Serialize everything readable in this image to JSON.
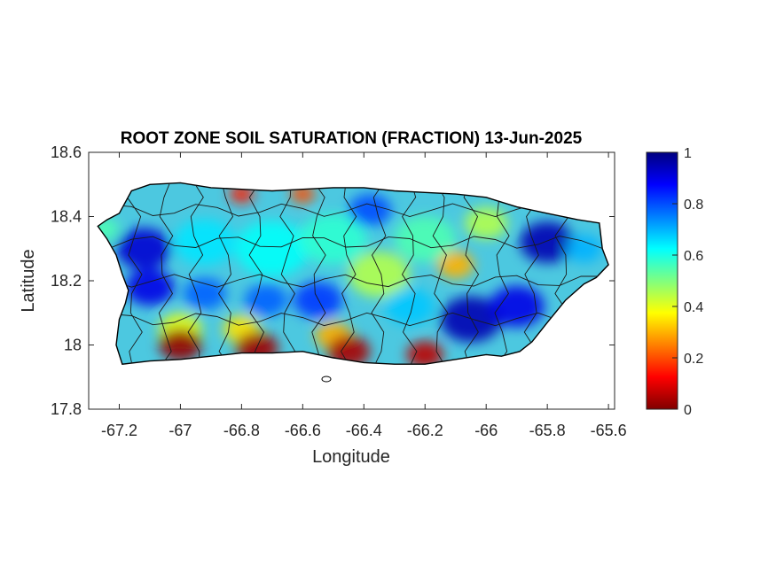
{
  "chart_data": {
    "type": "heatmap",
    "title": "ROOT ZONE SOIL SATURATION (FRACTION) 13-Jun-2025",
    "xlabel": "Longitude",
    "ylabel": "Latitude",
    "xlim": [
      -67.3,
      -65.58
    ],
    "ylim": [
      17.8,
      18.6
    ],
    "xticks": [
      -67.2,
      -67,
      -66.8,
      -66.6,
      -66.4,
      -66.2,
      -66,
      -65.8,
      -65.6
    ],
    "xtick_labels": [
      "-67.2",
      "-67",
      "-66.8",
      "-66.6",
      "-66.4",
      "-66.2",
      "-66",
      "-65.8",
      "-65.6"
    ],
    "yticks": [
      17.8,
      18,
      18.2,
      18.4,
      18.6
    ],
    "ytick_labels": [
      "17.8",
      "18",
      "18.2",
      "18.4",
      "18.6"
    ],
    "colorbar": {
      "colormap": "jet",
      "range": [
        0,
        1
      ],
      "ticks": [
        0,
        0.2,
        0.4,
        0.6,
        0.8,
        1
      ],
      "tick_labels": [
        "0",
        "0.2",
        "0.4",
        "0.6",
        "0.8",
        "1"
      ]
    },
    "outline": [
      [
        -67.27,
        18.37
      ],
      [
        -67.24,
        18.39
      ],
      [
        -67.2,
        18.41
      ],
      [
        -67.16,
        18.48
      ],
      [
        -67.1,
        18.5
      ],
      [
        -67.0,
        18.505
      ],
      [
        -66.9,
        18.49
      ],
      [
        -66.8,
        18.485
      ],
      [
        -66.7,
        18.48
      ],
      [
        -66.6,
        18.485
      ],
      [
        -66.5,
        18.49
      ],
      [
        -66.4,
        18.49
      ],
      [
        -66.3,
        18.48
      ],
      [
        -66.2,
        18.475
      ],
      [
        -66.1,
        18.47
      ],
      [
        -66.0,
        18.46
      ],
      [
        -65.9,
        18.43
      ],
      [
        -65.8,
        18.41
      ],
      [
        -65.7,
        18.39
      ],
      [
        -65.63,
        18.38
      ],
      [
        -65.62,
        18.3
      ],
      [
        -65.6,
        18.25
      ],
      [
        -65.64,
        18.21
      ],
      [
        -65.68,
        18.19
      ],
      [
        -65.74,
        18.14
      ],
      [
        -65.8,
        18.07
      ],
      [
        -65.85,
        18.01
      ],
      [
        -65.89,
        17.98
      ],
      [
        -65.95,
        17.965
      ],
      [
        -66.0,
        17.97
      ],
      [
        -66.1,
        17.955
      ],
      [
        -66.2,
        17.94
      ],
      [
        -66.3,
        17.94
      ],
      [
        -66.4,
        17.945
      ],
      [
        -66.5,
        17.96
      ],
      [
        -66.6,
        17.98
      ],
      [
        -66.7,
        17.975
      ],
      [
        -66.8,
        17.975
      ],
      [
        -66.9,
        17.965
      ],
      [
        -67.0,
        17.955
      ],
      [
        -67.1,
        17.95
      ],
      [
        -67.19,
        17.94
      ],
      [
        -67.21,
        18.0
      ],
      [
        -67.2,
        18.08
      ],
      [
        -67.18,
        18.13
      ],
      [
        -67.17,
        18.17
      ],
      [
        -67.19,
        18.22
      ],
      [
        -67.21,
        18.28
      ],
      [
        -67.24,
        18.33
      ],
      [
        -67.27,
        18.37
      ]
    ],
    "regions": [
      {
        "name": "",
        "lon": -67.25,
        "lat": 18.36,
        "value": 0.55,
        "radius_deg": 0.05
      },
      {
        "name": "",
        "lon": -67.12,
        "lat": 18.3,
        "value": 0.92,
        "radius_deg": 0.09
      },
      {
        "name": "",
        "lon": -67.1,
        "lat": 18.18,
        "value": 0.9,
        "radius_deg": 0.08
      },
      {
        "name": "",
        "lon": -66.92,
        "lat": 18.16,
        "value": 0.78,
        "radius_deg": 0.07
      },
      {
        "name": "",
        "lon": -66.92,
        "lat": 18.32,
        "value": 0.65,
        "radius_deg": 0.1
      },
      {
        "name": "",
        "lon": -66.7,
        "lat": 18.3,
        "value": 0.62,
        "radius_deg": 0.12
      },
      {
        "name": "",
        "lon": -66.72,
        "lat": 18.14,
        "value": 0.78,
        "radius_deg": 0.07
      },
      {
        "name": "",
        "lon": -66.55,
        "lat": 18.14,
        "value": 0.82,
        "radius_deg": 0.08
      },
      {
        "name": "",
        "lon": -66.5,
        "lat": 18.33,
        "value": 0.58,
        "radius_deg": 0.11
      },
      {
        "name": "",
        "lon": -66.35,
        "lat": 18.22,
        "value": 0.45,
        "radius_deg": 0.1
      },
      {
        "name": "",
        "lon": -66.38,
        "lat": 18.42,
        "value": 0.8,
        "radius_deg": 0.07
      },
      {
        "name": "",
        "lon": -66.2,
        "lat": 18.33,
        "value": 0.55,
        "radius_deg": 0.1
      },
      {
        "name": "",
        "lon": -66.1,
        "lat": 18.25,
        "value": 0.3,
        "radius_deg": 0.06
      },
      {
        "name": "",
        "lon": -66.0,
        "lat": 18.38,
        "value": 0.45,
        "radius_deg": 0.07
      },
      {
        "name": "",
        "lon": -66.05,
        "lat": 18.08,
        "value": 0.95,
        "radius_deg": 0.1
      },
      {
        "name": "",
        "lon": -65.9,
        "lat": 18.12,
        "value": 0.9,
        "radius_deg": 0.09
      },
      {
        "name": "",
        "lon": -65.8,
        "lat": 18.32,
        "value": 0.95,
        "radius_deg": 0.09
      },
      {
        "name": "",
        "lon": -65.68,
        "lat": 18.3,
        "value": 0.7,
        "radius_deg": 0.06
      },
      {
        "name": "",
        "lon": -66.25,
        "lat": 18.12,
        "value": 0.68,
        "radius_deg": 0.08
      },
      {
        "name": "",
        "lon": -66.8,
        "lat": 18.05,
        "value": 0.35,
        "radius_deg": 0.06
      },
      {
        "name": "",
        "lon": -66.5,
        "lat": 18.03,
        "value": 0.3,
        "radius_deg": 0.06
      },
      {
        "name": "",
        "lon": -67.0,
        "lat": 18.05,
        "value": 0.4,
        "radius_deg": 0.07
      },
      {
        "name": "",
        "lon": -66.8,
        "lat": 18.47,
        "value": 0.15,
        "radius_deg": 0.04
      },
      {
        "name": "",
        "lon": -66.6,
        "lat": 18.47,
        "value": 0.2,
        "radius_deg": 0.04
      },
      {
        "name": "",
        "lon": -67.0,
        "lat": 18.0,
        "value": 0.02,
        "radius_deg": 0.07
      },
      {
        "name": "",
        "lon": -66.75,
        "lat": 17.99,
        "value": 0.03,
        "radius_deg": 0.07
      },
      {
        "name": "",
        "lon": -66.45,
        "lat": 17.98,
        "value": 0.04,
        "radius_deg": 0.07
      },
      {
        "name": "",
        "lon": -66.2,
        "lat": 17.97,
        "value": 0.06,
        "radius_deg": 0.06
      }
    ],
    "grid": false,
    "legend": "none"
  }
}
